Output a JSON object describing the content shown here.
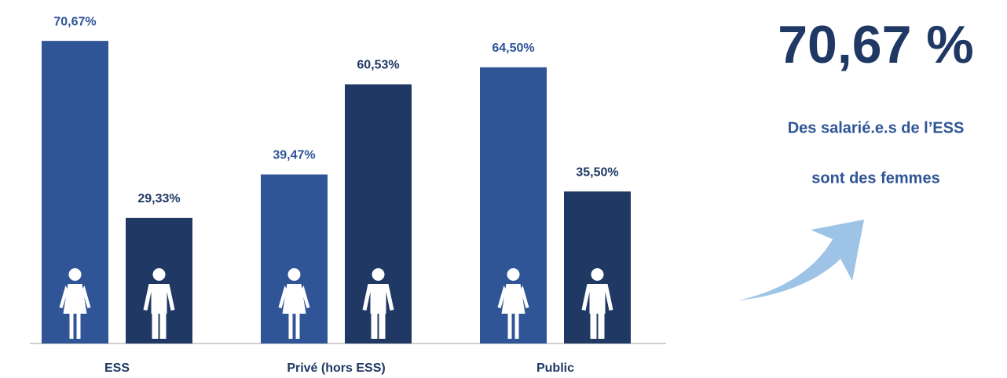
{
  "chart_data": {
    "type": "bar",
    "categories": [
      "ESS",
      "Privé (hors ESS)",
      "Public"
    ],
    "series": [
      {
        "color": "#2f5597",
        "values": [
          70.67,
          39.47,
          64.5
        ],
        "value_labels": [
          "70,67%",
          "39,47%",
          "64,50%"
        ]
      },
      {
        "color": "#203864",
        "values": [
          29.33,
          60.53,
          35.5
        ],
        "value_labels": [
          "29,33%",
          "60,53%",
          "35,50%"
        ]
      }
    ],
    "annotations": [
      "70,67 %",
      "Des salarié.e.s de l’ESS",
      "sont des femmes"
    ]
  }
}
